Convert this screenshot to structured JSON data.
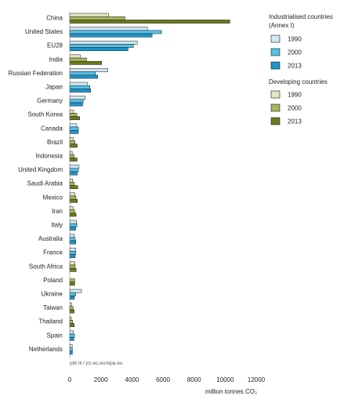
{
  "chart_data": {
    "type": "bar",
    "orientation": "horizontal",
    "categories": [
      "China",
      "United States",
      "EU28",
      "India",
      "Russian Federation",
      "Japan",
      "Germany",
      "South Korea",
      "Canada",
      "Brazil",
      "Indonesia",
      "United Kingdom",
      "Saudi Arabia",
      "Mexico",
      "Iran",
      "Italy",
      "Australia",
      "France",
      "South Africa",
      "Poland",
      "Ukraine",
      "Taiwan",
      "Thailand",
      "Spain",
      "Netherlands"
    ],
    "series": [
      {
        "group": "industrialised",
        "name": "1990",
        "color": "#cfe8f2",
        "values": [
          0,
          5000,
          4350,
          0,
          2450,
          1150,
          1000,
          0,
          450,
          0,
          0,
          600,
          0,
          0,
          0,
          440,
          280,
          390,
          0,
          0,
          760,
          0,
          0,
          230,
          160
        ]
      },
      {
        "group": "industrialised",
        "name": "2000",
        "color": "#55bfe6",
        "values": [
          0,
          5900,
          4100,
          0,
          1650,
          1300,
          870,
          0,
          560,
          0,
          0,
          560,
          0,
          0,
          0,
          460,
          350,
          390,
          0,
          0,
          380,
          0,
          0,
          310,
          170
        ]
      },
      {
        "group": "industrialised",
        "name": "2013",
        "color": "#1c95c9",
        "values": [
          0,
          5300,
          3750,
          0,
          1800,
          1350,
          830,
          0,
          550,
          0,
          0,
          480,
          0,
          0,
          0,
          380,
          390,
          350,
          0,
          0,
          300,
          0,
          0,
          260,
          170
        ]
      },
      {
        "group": "developing",
        "name": "1990",
        "color": "#e2e6c4",
        "values": [
          2500,
          0,
          0,
          680,
          0,
          0,
          0,
          250,
          0,
          230,
          160,
          0,
          190,
          330,
          210,
          0,
          0,
          0,
          320,
          0,
          0,
          130,
          100,
          0,
          0
        ]
      },
      {
        "group": "developing",
        "name": "2000",
        "color": "#a9b35f",
        "values": [
          3550,
          0,
          0,
          1080,
          0,
          0,
          0,
          460,
          0,
          340,
          280,
          0,
          300,
          400,
          320,
          0,
          0,
          0,
          350,
          320,
          0,
          220,
          190,
          0,
          0
        ]
      },
      {
        "group": "developing",
        "name": "2013",
        "color": "#6b7a1c",
        "values": [
          10300,
          0,
          0,
          2050,
          0,
          0,
          0,
          640,
          0,
          480,
          470,
          0,
          510,
          490,
          410,
          0,
          0,
          0,
          410,
          320,
          0,
          280,
          290,
          0,
          0
        ]
      }
    ],
    "xlabel": "million tonnes CO₂",
    "xlim": [
      0,
      12000
    ],
    "xticks": [
      "0",
      "2000",
      "4000",
      "6000",
      "8000",
      "10000",
      "12000"
    ],
    "grid": false,
    "legend_position": "right",
    "source": "pbl.nl / jrc.ec.europa.eu"
  },
  "legend": {
    "industrialised_title_line1": "Industrialised countries",
    "industrialised_title_line2": "(Annex I)",
    "developing_title": "Developing countries",
    "items": [
      {
        "label": "1990",
        "color": "#cfe8f2"
      },
      {
        "label": "2000",
        "color": "#55bfe6"
      },
      {
        "label": "2013",
        "color": "#1c95c9"
      },
      {
        "label": "1990",
        "color": "#e2e6c4"
      },
      {
        "label": "2000",
        "color": "#a9b35f"
      },
      {
        "label": "2013",
        "color": "#6b7a1c"
      }
    ]
  },
  "bar_edge_color": "#1a1a1a"
}
